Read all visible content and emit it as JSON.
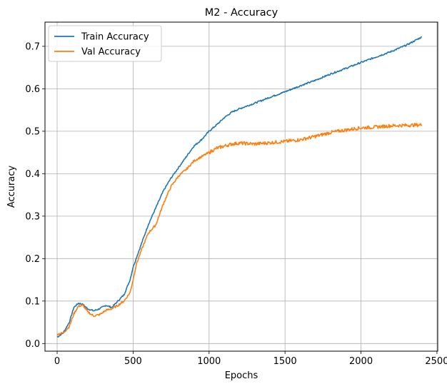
{
  "chart_data": {
    "type": "line",
    "title": "M2 - Accuracy",
    "xlabel": "Epochs",
    "ylabel": "Accuracy",
    "xlim": [
      -80,
      2505
    ],
    "ylim": [
      -0.018,
      0.757
    ],
    "xticks": [
      0,
      500,
      1000,
      1500,
      2000,
      2500
    ],
    "yticks": [
      0.0,
      0.1,
      0.2,
      0.3,
      0.4,
      0.5,
      0.6,
      0.7
    ],
    "xtick_labels": [
      "0",
      "500",
      "1000",
      "1500",
      "2000",
      "2500"
    ],
    "ytick_labels": [
      "0.0",
      "0.1",
      "0.2",
      "0.3",
      "0.4",
      "0.5",
      "0.6",
      "0.7"
    ],
    "grid": true,
    "legend_position": "top-left",
    "series": [
      {
        "name": "Train Accuracy",
        "color": "#1f77b4",
        "x": [
          0,
          40,
          80,
          110,
          140,
          170,
          200,
          240,
          280,
          320,
          360,
          400,
          440,
          480,
          500,
          520,
          560,
          600,
          650,
          700,
          750,
          800,
          850,
          900,
          950,
          1000,
          1050,
          1100,
          1150,
          1200,
          1300,
          1400,
          1500,
          1600,
          1700,
          1800,
          1900,
          2000,
          2100,
          2200,
          2300,
          2400
        ],
        "y": [
          0.015,
          0.025,
          0.05,
          0.085,
          0.095,
          0.092,
          0.082,
          0.077,
          0.082,
          0.09,
          0.085,
          0.1,
          0.115,
          0.15,
          0.18,
          0.2,
          0.24,
          0.28,
          0.32,
          0.36,
          0.39,
          0.415,
          0.44,
          0.465,
          0.48,
          0.5,
          0.515,
          0.532,
          0.545,
          0.553,
          0.566,
          0.58,
          0.593,
          0.607,
          0.62,
          0.635,
          0.648,
          0.662,
          0.675,
          0.688,
          0.703,
          0.722
        ]
      },
      {
        "name": "Val Accuracy",
        "color": "#ff7f0e",
        "x": [
          0,
          40,
          80,
          110,
          140,
          170,
          200,
          240,
          280,
          320,
          360,
          400,
          440,
          480,
          500,
          520,
          560,
          600,
          650,
          700,
          750,
          800,
          850,
          900,
          950,
          1000,
          1050,
          1100,
          1150,
          1200,
          1300,
          1400,
          1500,
          1600,
          1700,
          1800,
          1900,
          2000,
          2100,
          2200,
          2300,
          2400
        ],
        "y": [
          0.022,
          0.025,
          0.04,
          0.07,
          0.088,
          0.09,
          0.075,
          0.065,
          0.068,
          0.078,
          0.082,
          0.09,
          0.1,
          0.12,
          0.15,
          0.185,
          0.225,
          0.26,
          0.28,
          0.33,
          0.37,
          0.395,
          0.41,
          0.43,
          0.44,
          0.45,
          0.46,
          0.465,
          0.47,
          0.472,
          0.47,
          0.473,
          0.476,
          0.48,
          0.488,
          0.497,
          0.503,
          0.508,
          0.51,
          0.513,
          0.514,
          0.515
        ]
      }
    ]
  }
}
